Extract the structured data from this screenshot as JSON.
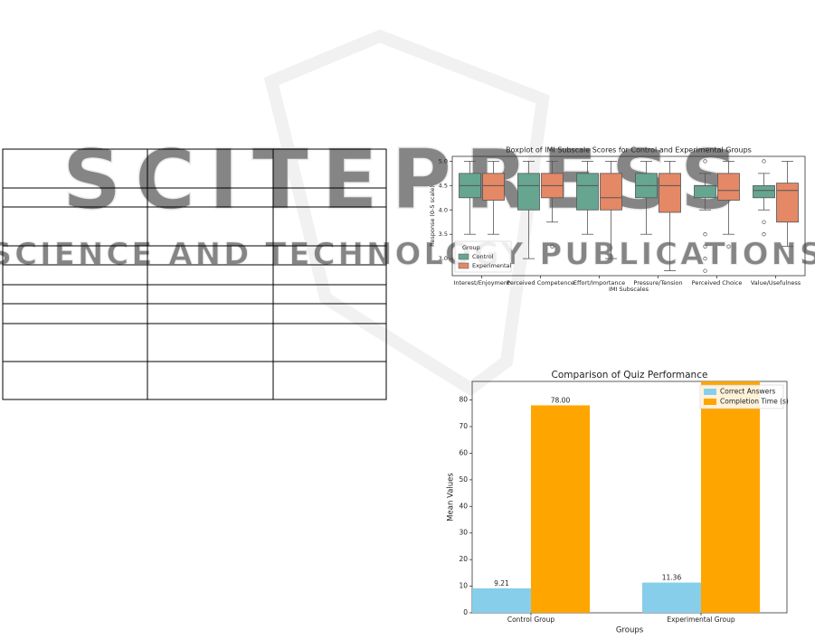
{
  "watermark": {
    "title": "SCITEPRESS",
    "subtitle": "SCIENCE AND TECHNOLOGY PUBLICATIONS"
  },
  "chart_data": [
    {
      "type": "box",
      "title": "Boxplot of IMI Subscale Scores for Control and Experimental Groups",
      "x_label": "IMI Subscales",
      "y_label": "Response (0-5 scale)",
      "legend_title": "Group",
      "legend": "lower left",
      "categories": [
        "Interest/Enjoyment",
        "Perceived Competence",
        "Effort/Importance",
        "Pressure/Tension",
        "Perceived Choice",
        "Value/Usefulness"
      ],
      "ylim": [
        2.65,
        5.1
      ],
      "yticks": [
        {
          "value": 3,
          "label": "3.0"
        },
        {
          "value": 3.5,
          "label": "3.5"
        },
        {
          "value": 4,
          "label": "4.0"
        },
        {
          "value": 4.5,
          "label": "4.5"
        },
        {
          "value": 5,
          "label": "5.0"
        }
      ],
      "series": [
        {
          "name": "Control",
          "color": "#66a690",
          "whislo": [
            3.5,
            3.0,
            3.5,
            3.5,
            4.0,
            4.0
          ],
          "q1": [
            4.25,
            4.0,
            4.0,
            4.25,
            4.25,
            4.25
          ],
          "med": [
            4.5,
            4.5,
            4.5,
            4.5,
            4.5,
            4.4
          ],
          "q3": [
            4.75,
            4.75,
            4.75,
            4.75,
            4.5,
            4.5
          ],
          "whishi": [
            5.0,
            5.0,
            5.0,
            5.0,
            4.75,
            4.75
          ],
          "fliers": [
            [],
            [],
            [],
            [],
            [
              5.0,
              3.5,
              3.25,
              3.0,
              2.75
            ],
            [
              5.0,
              3.75,
              3.5
            ]
          ]
        },
        {
          "name": "Experimental",
          "color": "#e48866",
          "whislo": [
            3.5,
            3.75,
            3.0,
            2.75,
            3.5,
            3.25
          ],
          "q1": [
            4.2,
            4.25,
            4.0,
            3.95,
            4.2,
            3.75
          ],
          "med": [
            4.5,
            4.5,
            4.25,
            4.5,
            4.4,
            4.4
          ],
          "q3": [
            4.75,
            4.75,
            4.75,
            4.75,
            4.75,
            4.55
          ],
          "whishi": [
            5.0,
            5.0,
            5.0,
            5.0,
            5.0,
            5.0
          ],
          "fliers": [
            [],
            [
              3.25
            ],
            [],
            [],
            [
              3.25
            ],
            []
          ]
        }
      ]
    },
    {
      "type": "bar",
      "title": "Comparison of Quiz Performance",
      "x_label": "Groups",
      "y_label": "Mean Values",
      "legend": "upper right",
      "categories": [
        "Control Group",
        "Experimental Group"
      ],
      "ylim": [
        0,
        87
      ],
      "yticks": [
        0,
        10,
        20,
        30,
        40,
        50,
        60,
        70,
        80
      ],
      "series": [
        {
          "name": "Correct Answers",
          "color": "#87ceeb",
          "values": [
            9.21,
            11.36
          ],
          "value_labels": [
            "9.21",
            "11.36"
          ]
        },
        {
          "name": "Completion Time (s)",
          "color": "#ffa500",
          "values": [
            78.0,
            90
          ],
          "value_labels": [
            "78.00",
            null
          ]
        }
      ]
    }
  ]
}
